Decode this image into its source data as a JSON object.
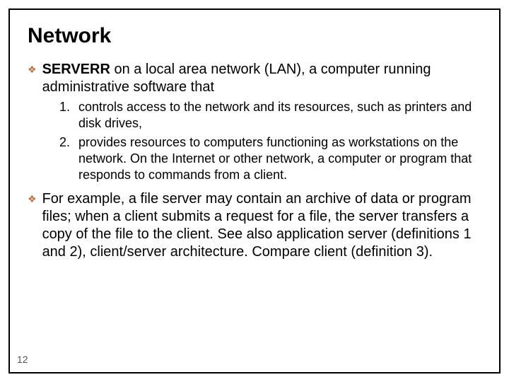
{
  "title": "Network",
  "bullet1": {
    "lead": "SERVERR",
    "rest": " on a local area network (LAN), a computer running administrative software that"
  },
  "numbered": {
    "item1": {
      "num": "1.",
      "text": " controls access to the network and its resources, such as printers and disk drives,"
    },
    "item2": {
      "num": "2.",
      "text": "provides resources to computers functioning as workstations on the network. On the Internet or other network, a computer or program that responds to commands from a client."
    }
  },
  "bullet2": "For example, a file server may contain an archive of data or program files; when a client submits a request for a file, the server transfers a copy of the file to the client. See also application server (definitions 1 and 2), client/server architecture. Compare client (definition 3).",
  "pageNumber": "12",
  "colors": {
    "diamond": "#b8724a",
    "text": "#000000",
    "border": "#000000"
  }
}
